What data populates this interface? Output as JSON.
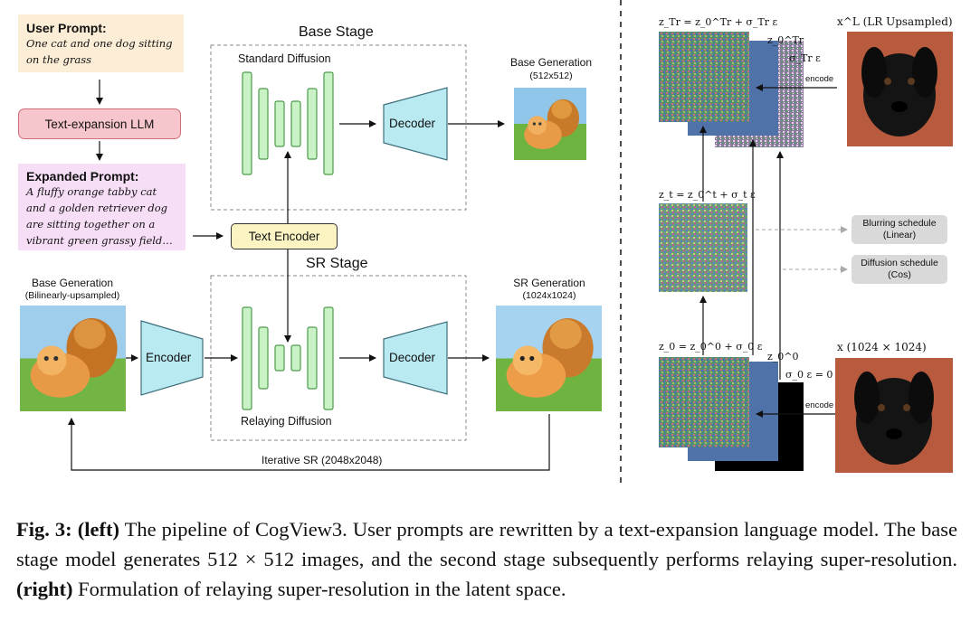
{
  "left": {
    "user_prompt": {
      "title": "User Prompt:",
      "text": "One cat and one dog sitting on the grass"
    },
    "text_expansion": "Text-expansion LLM",
    "expanded_prompt": {
      "title": "Expanded Prompt:",
      "text": "A fluffy orange tabby cat and a golden retriever dog are sitting together on a vibrant green grassy field…"
    },
    "text_encoder": "Text Encoder",
    "base_stage": {
      "title": "Base Stage",
      "diffusion_label": "Standard Diffusion",
      "decoder": "Decoder"
    },
    "base_generation": {
      "title": "Base Generation",
      "size": "(512x512)"
    },
    "sr_stage": {
      "title": "SR Stage",
      "diffusion_label": "Relaying Diffusion",
      "decoder": "Decoder",
      "encoder": "Encoder"
    },
    "sr_input": {
      "title": "Base Generation",
      "size": "(Bilinearly-upsampled)"
    },
    "sr_generation": {
      "title": "SR Generation",
      "size": "(1024x1024)"
    },
    "iterative": "Iterative SR (2048x2048)"
  },
  "right": {
    "top_eq": "z_Tr = z_0^Tr + σ_Tr ε",
    "top_z0": "z_0^Tr",
    "top_sigma": "σ_Tr ε",
    "top_image_label": "x^L (LR Upsampled)",
    "encode_top": "encode",
    "mid_eq": "z_t = z_0^t + σ_t ε",
    "blurring": {
      "line1": "Blurring schedule",
      "line2": "(Linear)"
    },
    "diffusion": {
      "line1": "Diffusion schedule",
      "line2": "(Cos)"
    },
    "bottom_eq": "z_0 = z_0^0 + σ_0 ε",
    "bottom_z0": "z_0^0",
    "bottom_sigma": "σ_0 ε = 0",
    "bottom_image_label": "x (1024 × 1024)",
    "encode_bottom": "encode"
  },
  "caption": {
    "fig": "Fig. 3:",
    "left_tag": "(left)",
    "part1": " The pipeline of CogView3. User prompts are rewritten by a text-expansion language model. The base stage model generates 512 × 512 images, and the second stage subsequently performs relaying super-resolution. ",
    "right_tag": "(right)",
    "part2": " Formulation of relaying super-resolution in the latent space."
  },
  "colors": {
    "user_prompt_bg": "#fbedd6",
    "llm_bg": "#f7c6cd",
    "llm_border": "#d46b78",
    "expanded_bg": "#f7def7",
    "encoder_bg": "#fbf4c2",
    "unet_bg": "#c9f3c7",
    "unet_border": "#4c9a4a",
    "decoder_bg": "#b9e9f1",
    "decoder_border": "#3f6f7c",
    "pill_bg": "#d9d9d9"
  }
}
